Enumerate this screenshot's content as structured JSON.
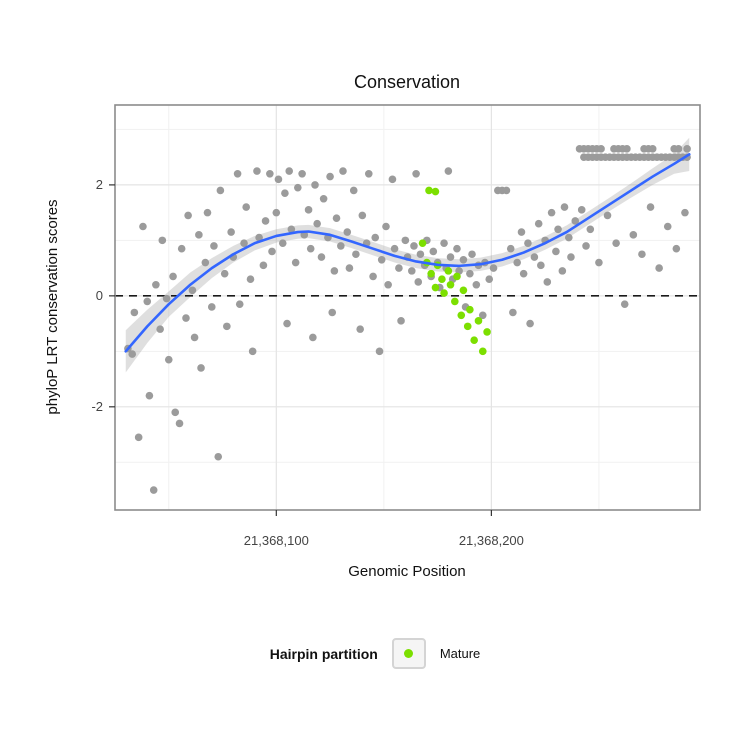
{
  "title": "Conservation",
  "axes": {
    "x_label": "Genomic Position",
    "y_label": "phyloP LRT conservation scores",
    "x_ticks": [
      {
        "value": 21368100,
        "label": "21,368,100"
      },
      {
        "value": 21368200,
        "label": "21,368,200"
      }
    ],
    "y_ticks": [
      {
        "value": 2,
        "label": "2"
      },
      {
        "value": 0,
        "label": "0"
      },
      {
        "value": -2,
        "label": "-2"
      }
    ]
  },
  "legend": {
    "title": "Hairpin partition",
    "items": [
      {
        "label": "Mature",
        "color": "#7CDF00"
      }
    ]
  },
  "colors": {
    "gray_point": "#9B9B9B",
    "mature_point": "#7CDF00",
    "smooth_line": "#3366FF",
    "ribbon": "rgba(150,150,150,0.30)",
    "panel_border": "#8C8C8C",
    "grid_major": "#E4E4E4",
    "grid_minor": "#F1F1F1",
    "zero_line": "#1A1A1A"
  },
  "chart_data": {
    "type": "scatter",
    "title": "Conservation",
    "xlabel": "Genomic Position",
    "ylabel": "phyloP LRT conservation scores",
    "xlim": [
      21368025,
      21368297
    ],
    "ylim": [
      -3.86,
      3.44
    ],
    "x_minor_gridlines": [
      21368050,
      21368150,
      21368250
    ],
    "y_minor_gridlines": [
      -3,
      -1,
      1,
      3
    ],
    "reference_line_y": 0,
    "legend_position": "bottom",
    "grid": true,
    "series": [
      {
        "name": "Other",
        "color": "#9B9B9B",
        "points": [
          [
            21368031,
            -0.95
          ],
          [
            21368033,
            -1.05
          ],
          [
            21368034,
            -0.3
          ],
          [
            21368036,
            -2.55
          ],
          [
            21368038,
            1.25
          ],
          [
            21368040,
            -0.1
          ],
          [
            21368041,
            -1.8
          ],
          [
            21368043,
            -3.5
          ],
          [
            21368044,
            0.2
          ],
          [
            21368046,
            -0.6
          ],
          [
            21368047,
            1.0
          ],
          [
            21368049,
            -0.05
          ],
          [
            21368050,
            -1.15
          ],
          [
            21368052,
            0.35
          ],
          [
            21368053,
            -2.1
          ],
          [
            21368055,
            -2.3
          ],
          [
            21368056,
            0.85
          ],
          [
            21368058,
            -0.4
          ],
          [
            21368059,
            1.45
          ],
          [
            21368061,
            0.1
          ],
          [
            21368062,
            -0.75
          ],
          [
            21368064,
            1.1
          ],
          [
            21368065,
            -1.3
          ],
          [
            21368067,
            0.6
          ],
          [
            21368068,
            1.5
          ],
          [
            21368070,
            -0.2
          ],
          [
            21368071,
            0.9
          ],
          [
            21368073,
            -2.9
          ],
          [
            21368074,
            1.9
          ],
          [
            21368076,
            0.4
          ],
          [
            21368077,
            -0.55
          ],
          [
            21368079,
            1.15
          ],
          [
            21368080,
            0.7
          ],
          [
            21368082,
            2.2
          ],
          [
            21368083,
            -0.15
          ],
          [
            21368085,
            0.95
          ],
          [
            21368086,
            1.6
          ],
          [
            21368088,
            0.3
          ],
          [
            21368089,
            -1.0
          ],
          [
            21368091,
            2.25
          ],
          [
            21368092,
            1.05
          ],
          [
            21368094,
            0.55
          ],
          [
            21368095,
            1.35
          ],
          [
            21368097,
            2.2
          ],
          [
            21368098,
            0.8
          ],
          [
            21368100,
            1.5
          ],
          [
            21368101,
            2.1
          ],
          [
            21368103,
            0.95
          ],
          [
            21368104,
            1.85
          ],
          [
            21368105,
            -0.5
          ],
          [
            21368106,
            2.25
          ],
          [
            21368107,
            1.2
          ],
          [
            21368109,
            0.6
          ],
          [
            21368110,
            1.95
          ],
          [
            21368112,
            2.2
          ],
          [
            21368113,
            1.1
          ],
          [
            21368115,
            1.55
          ],
          [
            21368116,
            0.85
          ],
          [
            21368117,
            -0.75
          ],
          [
            21368118,
            2.0
          ],
          [
            21368119,
            1.3
          ],
          [
            21368121,
            0.7
          ],
          [
            21368122,
            1.75
          ],
          [
            21368124,
            1.05
          ],
          [
            21368125,
            2.15
          ],
          [
            21368126,
            -0.3
          ],
          [
            21368127,
            0.45
          ],
          [
            21368128,
            1.4
          ],
          [
            21368130,
            0.9
          ],
          [
            21368131,
            2.25
          ],
          [
            21368133,
            1.15
          ],
          [
            21368134,
            0.5
          ],
          [
            21368136,
            1.9
          ],
          [
            21368137,
            0.75
          ],
          [
            21368139,
            -0.6
          ],
          [
            21368140,
            1.45
          ],
          [
            21368142,
            0.95
          ],
          [
            21368143,
            2.2
          ],
          [
            21368145,
            0.35
          ],
          [
            21368146,
            1.05
          ],
          [
            21368148,
            -1.0
          ],
          [
            21368149,
            0.65
          ],
          [
            21368151,
            1.25
          ],
          [
            21368152,
            0.2
          ],
          [
            21368154,
            2.1
          ],
          [
            21368155,
            0.85
          ],
          [
            21368157,
            0.5
          ],
          [
            21368158,
            -0.45
          ],
          [
            21368160,
            1.0
          ],
          [
            21368161,
            0.7
          ],
          [
            21368163,
            0.45
          ],
          [
            21368164,
            0.9
          ],
          [
            21368165,
            2.2
          ],
          [
            21368166,
            0.25
          ],
          [
            21368167,
            0.75
          ],
          [
            21368169,
            0.55
          ],
          [
            21368170,
            1.0
          ],
          [
            21368172,
            0.35
          ],
          [
            21368173,
            0.8
          ],
          [
            21368175,
            0.6
          ],
          [
            21368176,
            0.15
          ],
          [
            21368178,
            0.95
          ],
          [
            21368179,
            0.5
          ],
          [
            21368180,
            2.25
          ],
          [
            21368181,
            0.7
          ],
          [
            21368182,
            0.3
          ],
          [
            21368184,
            0.85
          ],
          [
            21368185,
            0.45
          ],
          [
            21368187,
            0.65
          ],
          [
            21368188,
            -0.2
          ],
          [
            21368190,
            0.4
          ],
          [
            21368191,
            0.75
          ],
          [
            21368193,
            0.2
          ],
          [
            21368194,
            0.55
          ],
          [
            21368196,
            -0.35
          ],
          [
            21368197,
            0.6
          ],
          [
            21368199,
            0.3
          ],
          [
            21368201,
            0.5
          ],
          [
            21368203,
            1.9
          ],
          [
            21368205,
            1.9
          ],
          [
            21368207,
            1.9
          ],
          [
            21368209,
            0.85
          ],
          [
            21368210,
            -0.3
          ],
          [
            21368212,
            0.6
          ],
          [
            21368214,
            1.15
          ],
          [
            21368215,
            0.4
          ],
          [
            21368217,
            0.95
          ],
          [
            21368218,
            -0.5
          ],
          [
            21368220,
            0.7
          ],
          [
            21368222,
            1.3
          ],
          [
            21368223,
            0.55
          ],
          [
            21368225,
            1.0
          ],
          [
            21368226,
            0.25
          ],
          [
            21368228,
            1.5
          ],
          [
            21368230,
            0.8
          ],
          [
            21368231,
            1.2
          ],
          [
            21368233,
            0.45
          ],
          [
            21368234,
            1.6
          ],
          [
            21368236,
            1.05
          ],
          [
            21368237,
            0.7
          ],
          [
            21368239,
            1.35
          ],
          [
            21368241,
            2.65
          ],
          [
            21368243,
            2.65
          ],
          [
            21368245,
            2.65
          ],
          [
            21368247,
            2.65
          ],
          [
            21368249,
            2.65
          ],
          [
            21368251,
            2.65
          ],
          [
            21368257,
            2.65
          ],
          [
            21368259,
            2.65
          ],
          [
            21368261,
            2.65
          ],
          [
            21368263,
            2.65
          ],
          [
            21368271,
            2.65
          ],
          [
            21368273,
            2.65
          ],
          [
            21368275,
            2.65
          ],
          [
            21368285,
            2.65
          ],
          [
            21368287,
            2.65
          ],
          [
            21368291,
            2.65
          ],
          [
            21368243,
            2.5
          ],
          [
            21368245,
            2.5
          ],
          [
            21368247,
            2.5
          ],
          [
            21368249,
            2.5
          ],
          [
            21368251,
            2.5
          ],
          [
            21368253,
            2.5
          ],
          [
            21368255,
            2.5
          ],
          [
            21368257,
            2.5
          ],
          [
            21368259,
            2.5
          ],
          [
            21368261,
            2.5
          ],
          [
            21368263,
            2.5
          ],
          [
            21368265,
            2.5
          ],
          [
            21368267,
            2.5
          ],
          [
            21368269,
            2.5
          ],
          [
            21368271,
            2.5
          ],
          [
            21368273,
            2.5
          ],
          [
            21368275,
            2.5
          ],
          [
            21368277,
            2.5
          ],
          [
            21368279,
            2.5
          ],
          [
            21368281,
            2.5
          ],
          [
            21368283,
            2.5
          ],
          [
            21368285,
            2.5
          ],
          [
            21368287,
            2.5
          ],
          [
            21368289,
            2.5
          ],
          [
            21368291,
            2.5
          ],
          [
            21368242,
            1.55
          ],
          [
            21368244,
            0.9
          ],
          [
            21368246,
            1.2
          ],
          [
            21368250,
            0.6
          ],
          [
            21368254,
            1.45
          ],
          [
            21368258,
            0.95
          ],
          [
            21368262,
            -0.15
          ],
          [
            21368266,
            1.1
          ],
          [
            21368270,
            0.75
          ],
          [
            21368274,
            1.6
          ],
          [
            21368278,
            0.5
          ],
          [
            21368282,
            1.25
          ],
          [
            21368286,
            0.85
          ],
          [
            21368290,
            1.5
          ]
        ]
      },
      {
        "name": "Mature",
        "color": "#7CDF00",
        "points": [
          [
            21368171,
            1.9
          ],
          [
            21368174,
            1.88
          ],
          [
            21368168,
            0.95
          ],
          [
            21368170,
            0.6
          ],
          [
            21368172,
            0.4
          ],
          [
            21368174,
            0.15
          ],
          [
            21368175,
            0.55
          ],
          [
            21368177,
            0.3
          ],
          [
            21368178,
            0.05
          ],
          [
            21368180,
            0.45
          ],
          [
            21368181,
            0.2
          ],
          [
            21368183,
            -0.1
          ],
          [
            21368184,
            0.35
          ],
          [
            21368186,
            -0.35
          ],
          [
            21368187,
            0.1
          ],
          [
            21368189,
            -0.55
          ],
          [
            21368190,
            -0.25
          ],
          [
            21368192,
            -0.8
          ],
          [
            21368194,
            -0.45
          ],
          [
            21368196,
            -1.0
          ],
          [
            21368198,
            -0.65
          ]
        ]
      }
    ],
    "smooth": {
      "color": "#3366FF",
      "x": [
        21368030,
        21368040,
        21368050,
        21368060,
        21368070,
        21368080,
        21368090,
        21368100,
        21368110,
        21368115,
        21368125,
        21368135,
        21368145,
        21368155,
        21368165,
        21368175,
        21368185,
        21368195,
        21368205,
        21368215,
        21368225,
        21368235,
        21368245,
        21368255,
        21368265,
        21368275,
        21368285,
        21368292
      ],
      "y": [
        -1.0,
        -0.55,
        -0.15,
        0.2,
        0.5,
        0.75,
        0.95,
        1.08,
        1.15,
        1.16,
        1.1,
        0.98,
        0.85,
        0.72,
        0.62,
        0.56,
        0.54,
        0.57,
        0.65,
        0.78,
        0.95,
        1.15,
        1.4,
        1.65,
        1.9,
        2.15,
        2.38,
        2.55
      ],
      "band_upper": [
        -0.62,
        -0.25,
        0.08,
        0.42,
        0.68,
        0.9,
        1.08,
        1.2,
        1.27,
        1.28,
        1.22,
        1.1,
        0.97,
        0.84,
        0.74,
        0.68,
        0.66,
        0.69,
        0.77,
        0.9,
        1.07,
        1.27,
        1.52,
        1.77,
        2.03,
        2.3,
        2.56,
        2.85
      ],
      "band_lower": [
        -1.38,
        -0.85,
        -0.38,
        -0.02,
        0.32,
        0.6,
        0.82,
        0.96,
        1.03,
        1.04,
        0.98,
        0.86,
        0.73,
        0.6,
        0.5,
        0.44,
        0.42,
        0.45,
        0.53,
        0.66,
        0.83,
        1.03,
        1.28,
        1.53,
        1.77,
        2.0,
        2.2,
        2.25
      ]
    }
  }
}
